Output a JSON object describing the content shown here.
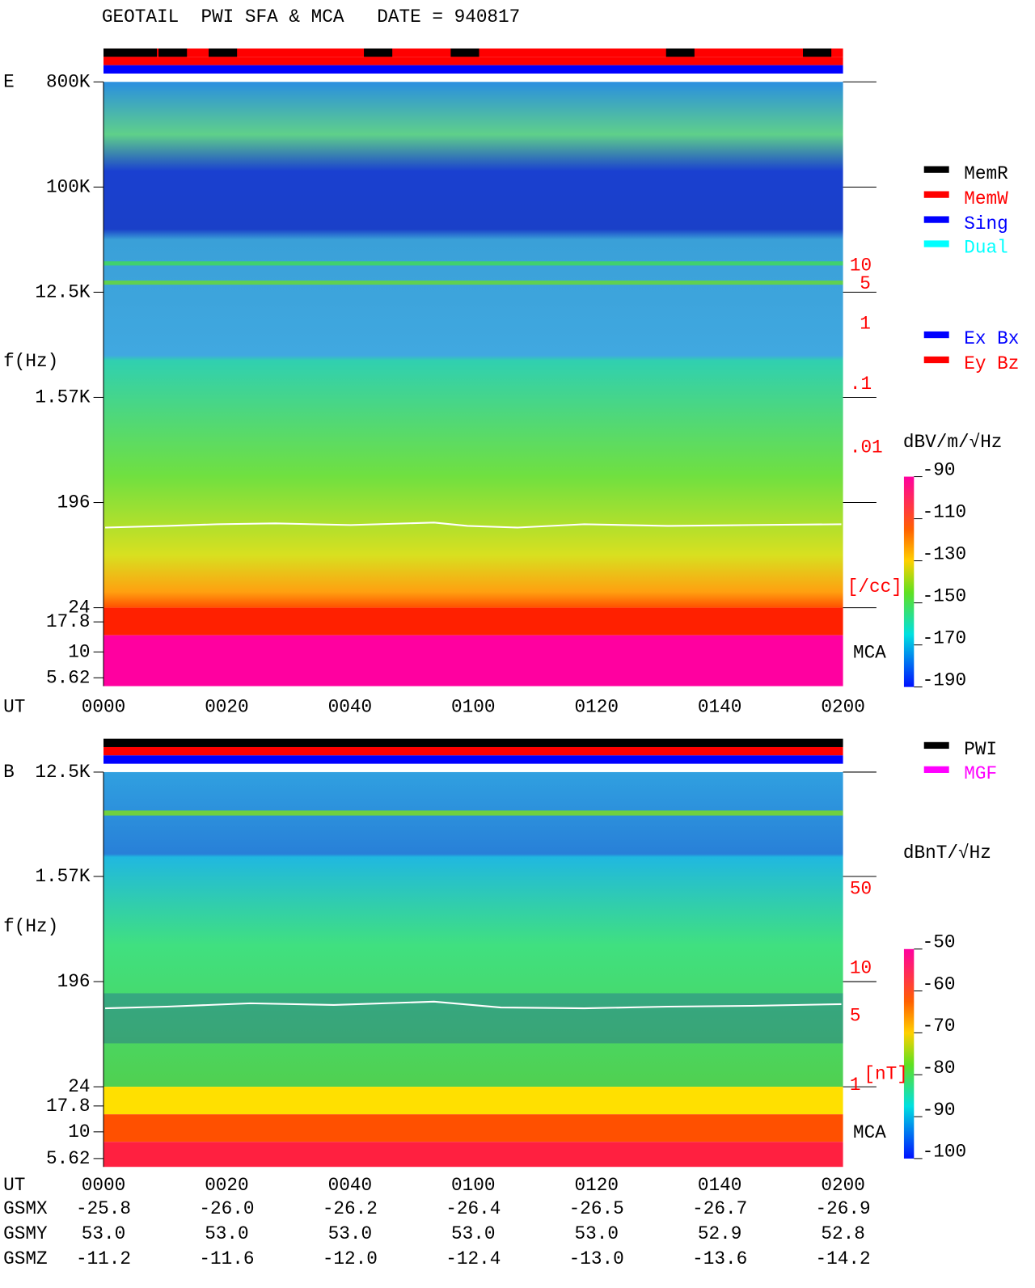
{
  "header": {
    "title": "GEOTAIL  PWI SFA & MCA   DATE = 940817"
  },
  "mode_legend": [
    {
      "label": "MemR",
      "color": "#000000"
    },
    {
      "label": "MemW",
      "color": "#ff0000"
    },
    {
      "label": "Sing",
      "color": "#0000ff"
    },
    {
      "label": "Dual",
      "color": "#00ffff"
    }
  ],
  "antenna_legend": [
    {
      "label": "Ex Bx",
      "color": "#0000ff"
    },
    {
      "label": "Ey Bz",
      "color": "#ff0000"
    }
  ],
  "source_legend": [
    {
      "label": "PWI",
      "color": "#000000"
    },
    {
      "label": "MGF",
      "color": "#ff00ff"
    }
  ],
  "panels": [
    {
      "label": "E",
      "y_axis_label": "f(Hz)",
      "x_axis_label": "UT",
      "yticks": [
        "800K",
        "100K",
        "12.5K",
        "1.57K",
        "196",
        "24",
        "17.8",
        "10",
        "5.62"
      ],
      "xticks": [
        "0000",
        "0020",
        "0040",
        "0100",
        "0120",
        "0140",
        "0200"
      ],
      "right_labels": [
        "10",
        "5",
        "1",
        ".1",
        ".01",
        "[/cc]"
      ],
      "mca_label": "MCA",
      "colorbar": {
        "unit": "dBV/m/√Hz",
        "ticks": [
          -90,
          -110,
          -130,
          -150,
          -170,
          -190
        ]
      }
    },
    {
      "label": "B",
      "y_axis_label": "f(Hz)",
      "x_axis_label": "UT",
      "yticks": [
        "12.5K",
        "1.57K",
        "196",
        "24",
        "17.8",
        "10",
        "5.62"
      ],
      "xticks": [
        "0000",
        "0020",
        "0040",
        "0100",
        "0120",
        "0140",
        "0200"
      ],
      "right_labels": [
        "50",
        "10",
        "5",
        "1",
        "[nT]"
      ],
      "mca_label": "MCA",
      "colorbar": {
        "unit": "dBnT/√Hz",
        "ticks": [
          -50,
          -60,
          -70,
          -80,
          -90,
          -100
        ]
      }
    }
  ],
  "orbit": {
    "rows": [
      {
        "label": "GSMX",
        "values": [
          "-25.8",
          "-26.0",
          "-26.2",
          "-26.4",
          "-26.5",
          "-26.7",
          "-26.9"
        ]
      },
      {
        "label": "GSMY",
        "values": [
          "53.0",
          "53.0",
          "53.0",
          "53.0",
          "53.0",
          "52.9",
          "52.8"
        ]
      },
      {
        "label": "GSMZ",
        "values": [
          "-11.2",
          "-11.6",
          "-12.0",
          "-12.4",
          "-13.0",
          "-13.6",
          "-14.2"
        ]
      }
    ]
  }
}
